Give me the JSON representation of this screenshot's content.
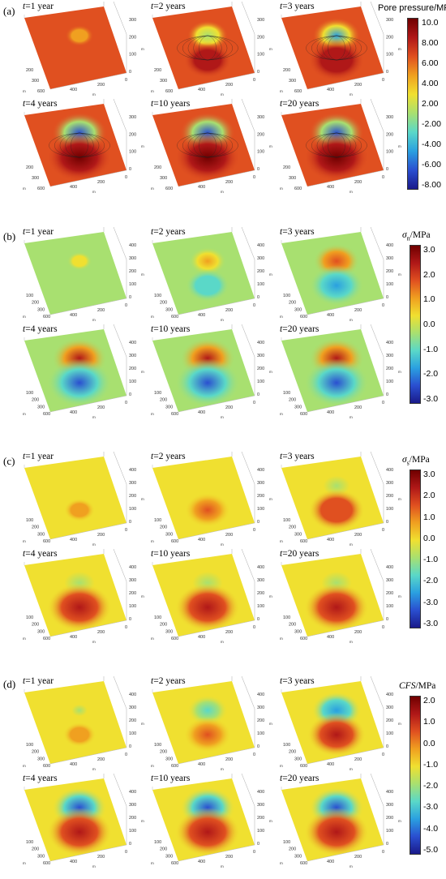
{
  "colormap": [
    "#1a1a8a",
    "#2a4fd0",
    "#2aa0e0",
    "#5ad8c8",
    "#a8e070",
    "#f0e030",
    "#f0a020",
    "#e05020",
    "#b01818",
    "#700000"
  ],
  "axis_ticks": {
    "right": [
      "300",
      "200",
      "100",
      "0"
    ],
    "right_bc": [
      "400",
      "300",
      "200",
      "100",
      "0"
    ],
    "left": [
      "200",
      "300",
      "600"
    ],
    "left_bc": [
      "100",
      "200",
      "300",
      "600"
    ],
    "bottom": [
      "400",
      "200",
      "0"
    ],
    "unit": "m"
  },
  "time_labels": [
    {
      "var": "t",
      "rest": "=1 year"
    },
    {
      "var": "t",
      "rest": "=2 years"
    },
    {
      "var": "t",
      "rest": "=3 years"
    },
    {
      "var": "t",
      "rest": "=4 years"
    },
    {
      "var": "t",
      "rest": "=10 years"
    },
    {
      "var": "t",
      "rest": "=20 years"
    }
  ],
  "panels": [
    {
      "label": "(a)",
      "cbar_title_plain": "Pore pressure/MPa",
      "ticks": [
        "10.0",
        "8.00",
        "6.00",
        "4.00",
        "2.00",
        "-2.00",
        "-4.00",
        "-6.00",
        "-8.00"
      ],
      "intensity": [
        0.25,
        0.6,
        0.8,
        1.0,
        1.0,
        1.0
      ],
      "top_level": 0.15,
      "bottom_level": 0.95,
      "base_level": 0.78
    },
    {
      "label": "(b)",
      "cbar_title_var": "σ",
      "cbar_title_sub": "n",
      "cbar_title_unit": "/MPa",
      "ticks": [
        "3.0",
        "2.0",
        "1.0",
        "0.0",
        "-1.0",
        "-2.0",
        "-3.0"
      ],
      "intensity": [
        0.15,
        0.5,
        0.75,
        1.0,
        1.0,
        1.0
      ],
      "top_level": 0.9,
      "bottom_level": 0.15,
      "base_level": 0.47
    },
    {
      "label": "(c)",
      "cbar_title_var": "σ",
      "cbar_title_sub": "s",
      "cbar_title_unit": "/MPa",
      "ticks": [
        "3.0",
        "2.0",
        "1.0",
        "0.0",
        "-1.0",
        "-2.0",
        "-3.0",
        "-3.0"
      ],
      "intensity": [
        0.2,
        0.55,
        0.8,
        1.0,
        1.0,
        1.0
      ],
      "top_level": 0.45,
      "bottom_level": 0.88,
      "base_level": 0.6
    },
    {
      "label": "(d)",
      "cbar_title_var": "CFS",
      "cbar_title_unit": "/MPa",
      "ticks": [
        "2.0",
        "1.0",
        "0.0",
        "-1.0",
        "-2.0",
        "-3.0",
        "-4.0",
        "-5.0"
      ],
      "intensity": [
        0.25,
        0.6,
        0.85,
        1.0,
        1.0,
        1.0
      ],
      "top_level": 0.1,
      "bottom_level": 0.92,
      "base_level": 0.58
    }
  ]
}
